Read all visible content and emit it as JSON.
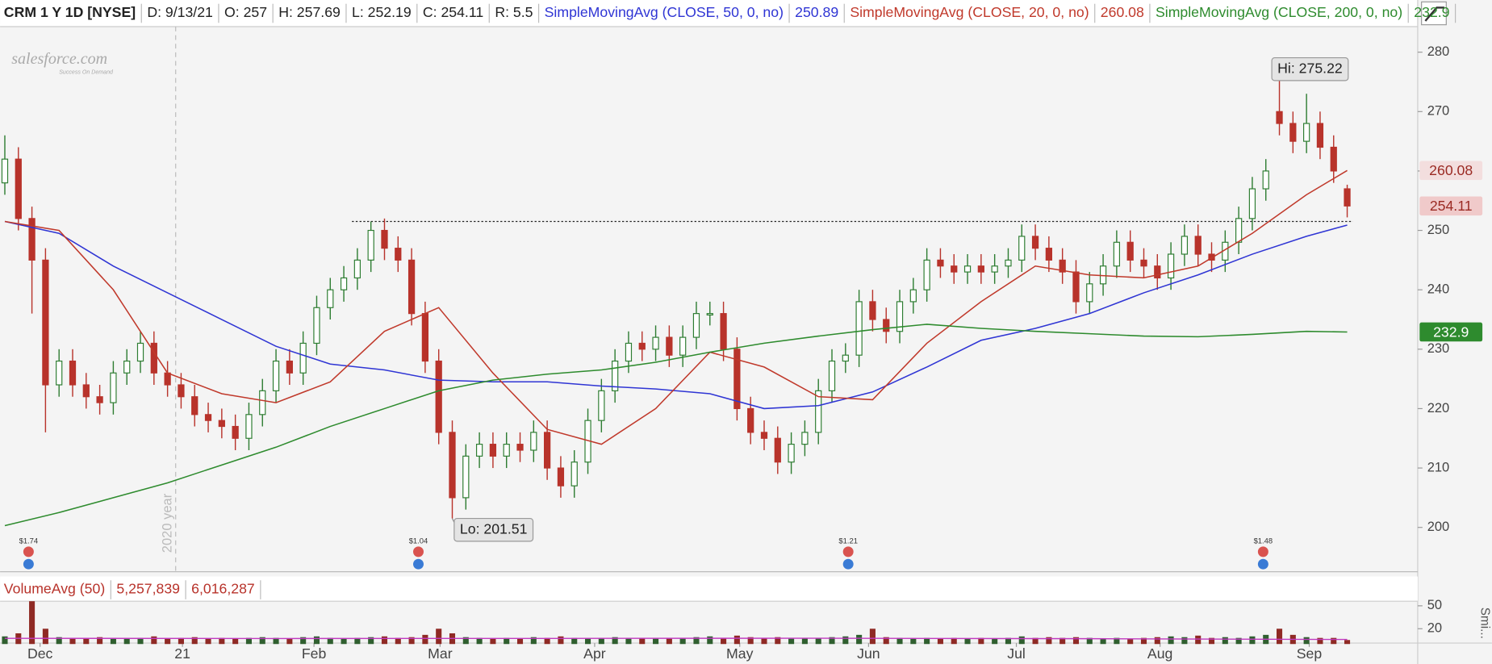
{
  "header": {
    "symbol": "CRM 1 Y 1D [NYSE]",
    "items": [
      "D: 9/13/21",
      "O: 257",
      "H: 257.69",
      "L: 252.19",
      "C: 254.11",
      "R: 5.5"
    ]
  },
  "logo": {
    "name": "salesforce.com",
    "tagline": "Success On Demand"
  },
  "chart_data": {
    "type": "candlestick",
    "open": [
      258,
      262,
      252,
      245,
      224,
      228,
      224,
      222,
      221,
      226,
      228,
      231,
      226,
      224,
      222,
      219,
      218,
      217,
      215,
      219,
      223,
      228,
      226,
      231,
      237,
      240,
      242,
      245,
      250,
      247,
      245,
      236,
      228,
      216,
      205,
      212,
      214,
      212,
      214,
      213,
      216,
      210,
      207,
      211,
      218,
      223,
      228,
      231,
      230,
      232,
      229,
      232,
      236,
      236,
      230,
      220,
      216,
      215,
      211,
      214,
      216,
      223,
      228,
      229,
      238,
      235,
      233,
      238,
      240,
      245,
      244,
      243,
      244,
      243,
      244,
      245,
      249,
      247,
      245,
      243,
      238,
      241,
      244,
      248,
      245,
      244,
      242,
      246,
      249,
      246,
      245,
      248,
      252,
      257,
      270,
      268,
      265,
      268,
      264,
      257
    ],
    "high": [
      266,
      264,
      254,
      247,
      230,
      230,
      226,
      224,
      228,
      230,
      233,
      233,
      228,
      226,
      224,
      221,
      220,
      219,
      221,
      225,
      230,
      230,
      233,
      239,
      242,
      244,
      247,
      251.5,
      252,
      249,
      247,
      238,
      230,
      218,
      214,
      216,
      216,
      216,
      216,
      218,
      218,
      212,
      213,
      220,
      225,
      230,
      233,
      233,
      234,
      234,
      234,
      238,
      238,
      238,
      232,
      222,
      218,
      217,
      216,
      218,
      225,
      230,
      231,
      240,
      240,
      237,
      240,
      242,
      247,
      247,
      246,
      246,
      246,
      246,
      247,
      251,
      251,
      249,
      247,
      245,
      243,
      246,
      250,
      250,
      247,
      246,
      248,
      251,
      251,
      248,
      250,
      254,
      259,
      262,
      275.22,
      270,
      273,
      270,
      266,
      257.69
    ],
    "low": [
      256,
      250,
      236,
      216,
      222,
      222,
      220,
      219,
      219,
      224,
      226,
      224,
      222,
      220,
      217,
      216,
      215,
      213,
      213,
      217,
      221,
      224,
      224,
      229,
      235,
      238,
      240,
      243,
      245,
      243,
      234,
      226,
      214,
      201.51,
      203,
      210,
      210,
      210,
      211,
      211,
      208,
      205,
      205,
      209,
      216,
      221,
      226,
      228,
      228,
      227,
      227,
      230,
      234,
      228,
      218,
      214,
      213,
      209,
      209,
      212,
      214,
      221,
      226,
      227,
      233,
      231,
      231,
      236,
      238,
      242,
      241,
      241,
      241,
      241,
      242,
      243,
      245,
      243,
      241,
      236,
      236,
      239,
      242,
      243,
      242,
      240,
      240,
      244,
      244,
      243,
      243,
      246,
      250,
      255,
      266,
      263,
      263,
      262,
      258,
      252.19
    ],
    "close": [
      262,
      252,
      245,
      224,
      228,
      224,
      222,
      221,
      226,
      228,
      231,
      226,
      224,
      222,
      219,
      218,
      217,
      215,
      219,
      223,
      228,
      226,
      231,
      237,
      240,
      242,
      245,
      250,
      247,
      245,
      236,
      228,
      216,
      205,
      212,
      214,
      212,
      214,
      213,
      216,
      210,
      207,
      211,
      218,
      223,
      228,
      231,
      230,
      232,
      229,
      232,
      236,
      236,
      230,
      220,
      216,
      215,
      211,
      214,
      216,
      223,
      228,
      229,
      238,
      235,
      233,
      238,
      240,
      245,
      244,
      243,
      244,
      243,
      244,
      245,
      249,
      247,
      245,
      243,
      238,
      241,
      244,
      248,
      245,
      244,
      242,
      246,
      249,
      246,
      245,
      248,
      252,
      257,
      260,
      268,
      265,
      268,
      264,
      260,
      254.11
    ],
    "up_color": "#2e7d32",
    "down_color": "#b8332b",
    "xlim": [
      -0.35,
      104.2
    ],
    "xticks": [
      {
        "value": 2.6,
        "label": "Dec"
      },
      {
        "value": 13.1,
        "label": "21"
      },
      {
        "value": 22.8,
        "label": "Feb"
      },
      {
        "value": 32.1,
        "label": "Mar"
      },
      {
        "value": 43.5,
        "label": "Apr"
      },
      {
        "value": 54.2,
        "label": "May"
      },
      {
        "value": 63.7,
        "label": "Jun"
      },
      {
        "value": 74.6,
        "label": "Jul"
      },
      {
        "value": 85.2,
        "label": "Aug"
      },
      {
        "value": 96.2,
        "label": "Sep"
      }
    ],
    "ylim": [
      192.7,
      284.3
    ],
    "yticks": [
      200,
      210,
      220,
      230,
      240,
      250,
      260,
      270,
      280
    ],
    "series": [
      {
        "name": "SimpleMovingAvg (CLOSE, 50, 0, no)",
        "color": "#2f35d4",
        "x": [
          0,
          4,
          8,
          12,
          16,
          20,
          24,
          28,
          32,
          36,
          40,
          44,
          48,
          52,
          56,
          60,
          64,
          68,
          72,
          76,
          80,
          84,
          88,
          92,
          96,
          99
        ],
        "values": [
          251.5,
          249.5,
          244,
          239.5,
          235,
          230.5,
          227.5,
          226.5,
          224.8,
          224.5,
          224.5,
          223.8,
          223.3,
          222.5,
          220,
          220.5,
          222.8,
          227,
          231.5,
          233.5,
          236,
          239.5,
          242.5,
          246,
          249,
          250.89
        ]
      },
      {
        "name": "SimpleMovingAvg (CLOSE, 20, 0, no)",
        "color": "#c0392b",
        "x": [
          0,
          4,
          8,
          12,
          16,
          20,
          24,
          28,
          32,
          36,
          40,
          44,
          48,
          52,
          56,
          60,
          64,
          68,
          72,
          76,
          80,
          84,
          88,
          92,
          96,
          99
        ],
        "values": [
          251.5,
          250,
          240,
          226,
          222.5,
          221,
          224.5,
          233,
          237,
          226,
          216.5,
          214,
          220,
          229.5,
          227,
          222,
          221.5,
          231,
          238,
          244,
          242.5,
          242,
          244,
          249.5,
          256,
          260.08
        ]
      },
      {
        "name": "SimpleMovingAvg (CLOSE, 200, 0, no)",
        "color": "#2e8b2e",
        "x": [
          0,
          4,
          8,
          12,
          16,
          20,
          24,
          28,
          32,
          36,
          40,
          44,
          48,
          52,
          56,
          60,
          64,
          68,
          72,
          76,
          80,
          84,
          88,
          92,
          96,
          99
        ],
        "values": [
          200.3,
          202.5,
          205,
          207.5,
          210.5,
          213.5,
          217,
          220,
          223,
          224.8,
          225.8,
          226.5,
          227.8,
          229.5,
          231,
          232.2,
          233.3,
          234.2,
          233.5,
          233,
          232.6,
          232.2,
          232.1,
          232.5,
          233,
          232.9
        ]
      }
    ],
    "reference_line": 251.5,
    "annotations": [
      {
        "x": 94,
        "y": 275.22,
        "label": "Hi: 275.22"
      },
      {
        "x": 33,
        "y": 201.51,
        "label": "Lo: 201.51"
      }
    ],
    "year_marker": {
      "x": 12.6,
      "label": "2020 year"
    },
    "dividends": [
      {
        "x": 1.75,
        "label": "$1.74"
      },
      {
        "x": 30.5,
        "label": "$1.04"
      },
      {
        "x": 62.2,
        "label": "$1.21"
      },
      {
        "x": 92.8,
        "label": "$1.48"
      }
    ],
    "volume": {
      "title": "VolumeAvg (50)",
      "header_values": [
        "5,257,839",
        "6,016,287"
      ],
      "side_label": "Smi...",
      "values": [
        10,
        14,
        56,
        20,
        9,
        8,
        7,
        9,
        8,
        7,
        8,
        10,
        7,
        8,
        9,
        7,
        8,
        7,
        8,
        9,
        8,
        7,
        9,
        10,
        8,
        7,
        8,
        9,
        10,
        8,
        9,
        12,
        20,
        14,
        9,
        8,
        7,
        8,
        7,
        9,
        8,
        10,
        8,
        7,
        8,
        9,
        7,
        8,
        7,
        8,
        8,
        9,
        10,
        8,
        11,
        9,
        8,
        9,
        7,
        8,
        8,
        9,
        10,
        12,
        20,
        9,
        8,
        7,
        8,
        7,
        8,
        7,
        8,
        7,
        8,
        10,
        8,
        9,
        8,
        9,
        8,
        7,
        8,
        7,
        8,
        9,
        10,
        9,
        11,
        8,
        9,
        8,
        10,
        12,
        20,
        12,
        9,
        8,
        8,
        5.257839
      ],
      "avg": {
        "color": "#c03bc0",
        "x": [
          0,
          20,
          40,
          60,
          80,
          99
        ],
        "values": [
          7.5,
          7.2,
          7.4,
          7.6,
          7.0,
          6.016287
        ]
      },
      "ylim": [
        0,
        56
      ],
      "yticks": [
        20,
        50
      ]
    }
  }
}
